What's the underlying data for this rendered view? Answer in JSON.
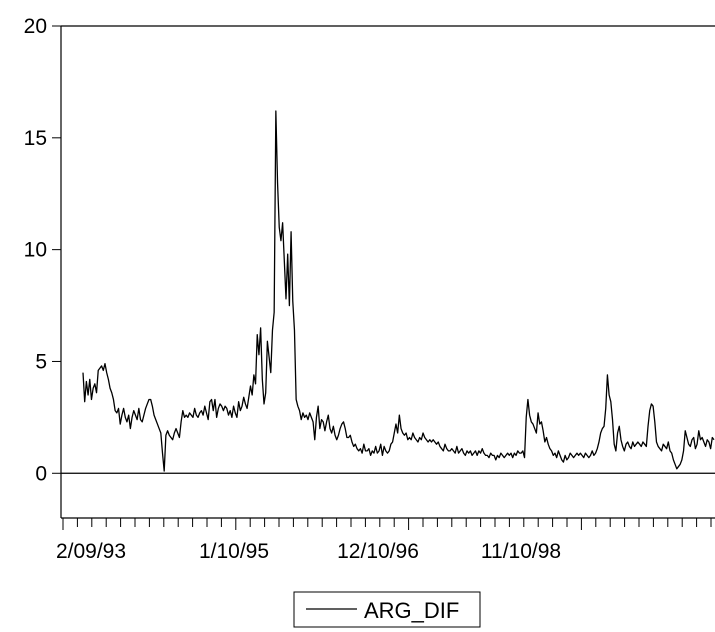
{
  "chart_data": {
    "type": "line",
    "title": "",
    "xlabel": "",
    "ylabel": "",
    "ylim": [
      -2,
      20
    ],
    "y_ticks": [
      0,
      5,
      10,
      15,
      20
    ],
    "x_tick_labels": [
      "2/09/93",
      "1/10/95",
      "12/10/96",
      "11/10/98"
    ],
    "x_minor_tick_count": 46,
    "zero_line": true,
    "legend": {
      "position": "bottom-center"
    },
    "series": [
      {
        "name": "ARG_DIF",
        "color": "#000000",
        "values": [
          4.5,
          3.2,
          4.1,
          3.5,
          4.2,
          3.3,
          3.8,
          4.0,
          3.6,
          4.6,
          4.7,
          4.8,
          4.6,
          4.9,
          4.5,
          4.2,
          3.8,
          3.6,
          3.3,
          2.8,
          2.7,
          2.9,
          2.2,
          2.6,
          2.9,
          2.5,
          2.3,
          2.6,
          2.0,
          2.5,
          2.8,
          2.6,
          2.4,
          2.9,
          2.4,
          2.3,
          2.6,
          2.9,
          3.1,
          3.3,
          3.3,
          3.0,
          2.6,
          2.4,
          2.2,
          2.0,
          1.8,
          0.9,
          0.1,
          1.7,
          1.9,
          1.7,
          1.6,
          1.5,
          1.8,
          2.0,
          1.8,
          1.6,
          2.3,
          2.8,
          2.5,
          2.6,
          2.5,
          2.7,
          2.6,
          2.5,
          2.9,
          2.6,
          2.5,
          2.7,
          2.8,
          2.6,
          3.0,
          2.7,
          2.4,
          3.2,
          3.3,
          2.8,
          3.3,
          2.5,
          2.9,
          3.1,
          3.0,
          2.8,
          3.0,
          2.9,
          2.6,
          2.8,
          2.5,
          3.0,
          2.7,
          2.5,
          3.2,
          2.8,
          3.0,
          3.4,
          3.1,
          2.9,
          3.4,
          3.9,
          3.5,
          4.4,
          4.0,
          6.2,
          5.3,
          6.5,
          4.2,
          3.1,
          3.6,
          5.9,
          5.2,
          4.5,
          6.4,
          7.2,
          16.2,
          13.0,
          11.0,
          10.4,
          11.2,
          9.5,
          7.8,
          9.8,
          7.5,
          10.8,
          7.7,
          6.4,
          3.3,
          3.0,
          2.8,
          2.4,
          2.7,
          2.5,
          2.6,
          2.4,
          2.7,
          2.5,
          2.3,
          1.5,
          2.5,
          3.0,
          2.0,
          2.4,
          2.3,
          1.9,
          2.3,
          2.6,
          2.0,
          1.8,
          2.1,
          1.7,
          1.5,
          1.7,
          2.0,
          2.2,
          2.3,
          2.0,
          1.6,
          1.6,
          1.7,
          1.4,
          1.2,
          1.3,
          1.1,
          1.0,
          1.1,
          0.9,
          1.3,
          1.0,
          1.0,
          1.1,
          0.8,
          1.0,
          0.9,
          1.2,
          0.9,
          1.0,
          1.3,
          0.8,
          1.2,
          1.0,
          0.9,
          1.0,
          1.3,
          1.4,
          1.8,
          2.2,
          1.8,
          2.6,
          2.0,
          1.8,
          1.7,
          1.8,
          1.5,
          1.6,
          1.5,
          1.8,
          1.6,
          1.5,
          1.4,
          1.6,
          1.5,
          1.8,
          1.6,
          1.5,
          1.4,
          1.5,
          1.4,
          1.5,
          1.4,
          1.3,
          1.4,
          1.2,
          1.1,
          1.0,
          1.3,
          1.1,
          1.0,
          1.0,
          1.1,
          1.0,
          0.9,
          1.2,
          0.9,
          1.0,
          1.1,
          0.9,
          0.8,
          1.0,
          0.9,
          1.0,
          0.8,
          0.9,
          1.0,
          0.8,
          1.0,
          0.9,
          1.1,
          0.9,
          0.8,
          0.8,
          0.7,
          0.9,
          0.8,
          0.8,
          0.6,
          0.8,
          0.7,
          0.9,
          0.8,
          0.7,
          0.8,
          0.9,
          0.8,
          0.9,
          0.7,
          0.9,
          0.8,
          1.0,
          0.9,
          0.9,
          1.0,
          0.7,
          2.5,
          3.3,
          2.6,
          2.3,
          2.2,
          2.0,
          1.8,
          2.7,
          2.2,
          2.3,
          1.9,
          1.4,
          1.6,
          1.3,
          1.1,
          1.0,
          0.8,
          0.9,
          0.7,
          1.0,
          0.8,
          0.6,
          0.5,
          0.8,
          0.6,
          0.7,
          0.9,
          0.8,
          0.7,
          0.8,
          0.9,
          0.8,
          0.9,
          0.8,
          0.7,
          0.9,
          0.8,
          0.7,
          0.8,
          1.0,
          0.8,
          0.9,
          1.1,
          1.4,
          1.8,
          2.0,
          2.1,
          2.9,
          4.4,
          3.5,
          3.2,
          2.4,
          1.3,
          1.0,
          1.8,
          2.1,
          1.5,
          1.2,
          1.0,
          1.3,
          1.4,
          1.2,
          1.1,
          1.4,
          1.2,
          1.3,
          1.4,
          1.3,
          1.2,
          1.4,
          1.3,
          1.2,
          2.1,
          2.8,
          3.1,
          3.0,
          2.3,
          1.4,
          1.2,
          1.1,
          1.0,
          1.3,
          1.2,
          1.1,
          1.4,
          1.0,
          0.9,
          0.6,
          0.4,
          0.2,
          0.3,
          0.4,
          0.6,
          1.0,
          1.9,
          1.6,
          1.3,
          1.2,
          1.5,
          1.6,
          1.1,
          1.3,
          1.9,
          1.5,
          1.6,
          1.4,
          1.2,
          1.5,
          1.4,
          1.1,
          1.6,
          1.5
        ]
      }
    ]
  }
}
